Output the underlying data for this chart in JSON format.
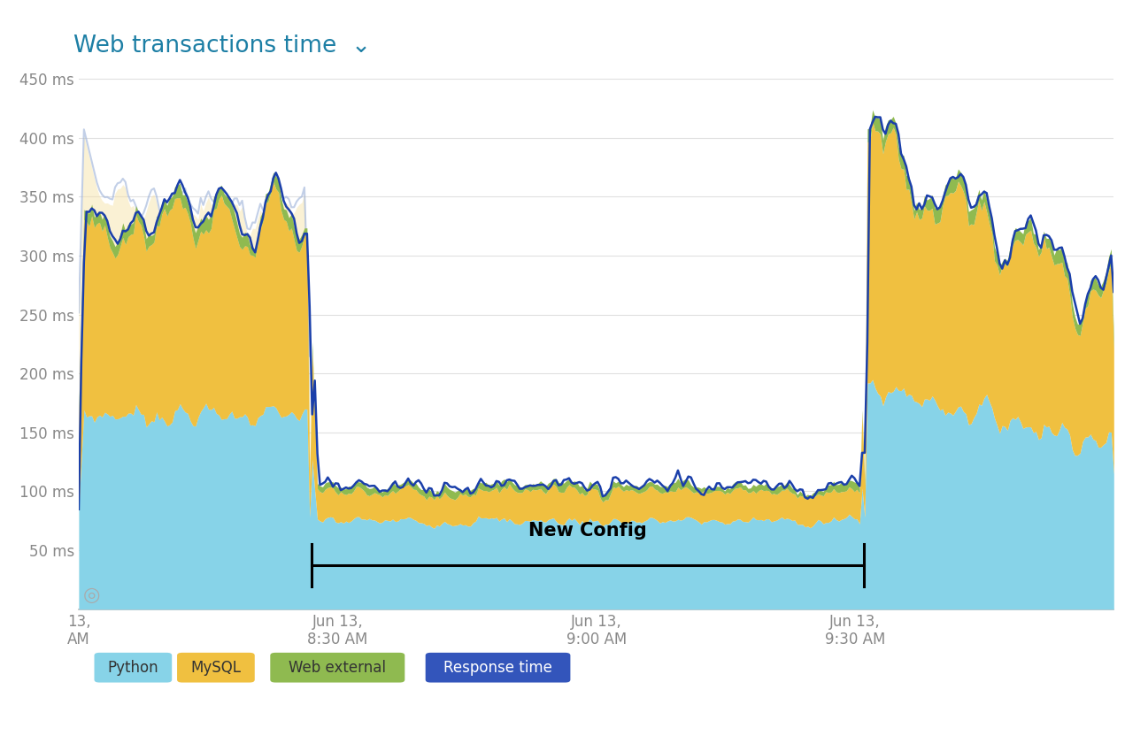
{
  "title": "Web transactions time  ⌄",
  "title_color": "#1d7fa5",
  "background_color": "#ffffff",
  "plot_bg_color": "#ffffff",
  "ylabel_ticks": [
    "50 ms",
    "100 ms",
    "150 ms",
    "200 ms",
    "250 ms",
    "300 ms",
    "350 ms",
    "400 ms",
    "450 ms"
  ],
  "ytick_vals": [
    50,
    100,
    150,
    200,
    250,
    300,
    350,
    400,
    450
  ],
  "ylim": [
    0,
    460
  ],
  "xlim_start": 0,
  "xlim_end": 120,
  "xtick_positions": [
    0,
    30,
    60,
    90
  ],
  "xtick_labels": [
    "13,\nAM",
    "Jun 13,\n8:30 AM",
    "Jun 13,\n9:00 AM",
    "Jun 13,\n9:30 AM"
  ],
  "color_python": "#87d3e8",
  "color_python_ghost": "#c8e8f0",
  "color_mysql": "#f0c040",
  "color_mysql_ghost": "#f5e0a0",
  "color_web_external": "#8fba50",
  "color_response_time": "#1a3faa",
  "color_response_ghost": "#9ab0d8",
  "new_config_x_start": 27,
  "new_config_x_end": 91,
  "new_config_label": "New Config",
  "legend_items": [
    "Python",
    "MySQL",
    "Web external",
    "Response time"
  ],
  "legend_bg_colors": [
    "#87d3e8",
    "#f0c040",
    "#8fba50",
    "#3355bb"
  ],
  "legend_text_colors": [
    "#333333",
    "#333333",
    "#333333",
    "#ffffff"
  ]
}
